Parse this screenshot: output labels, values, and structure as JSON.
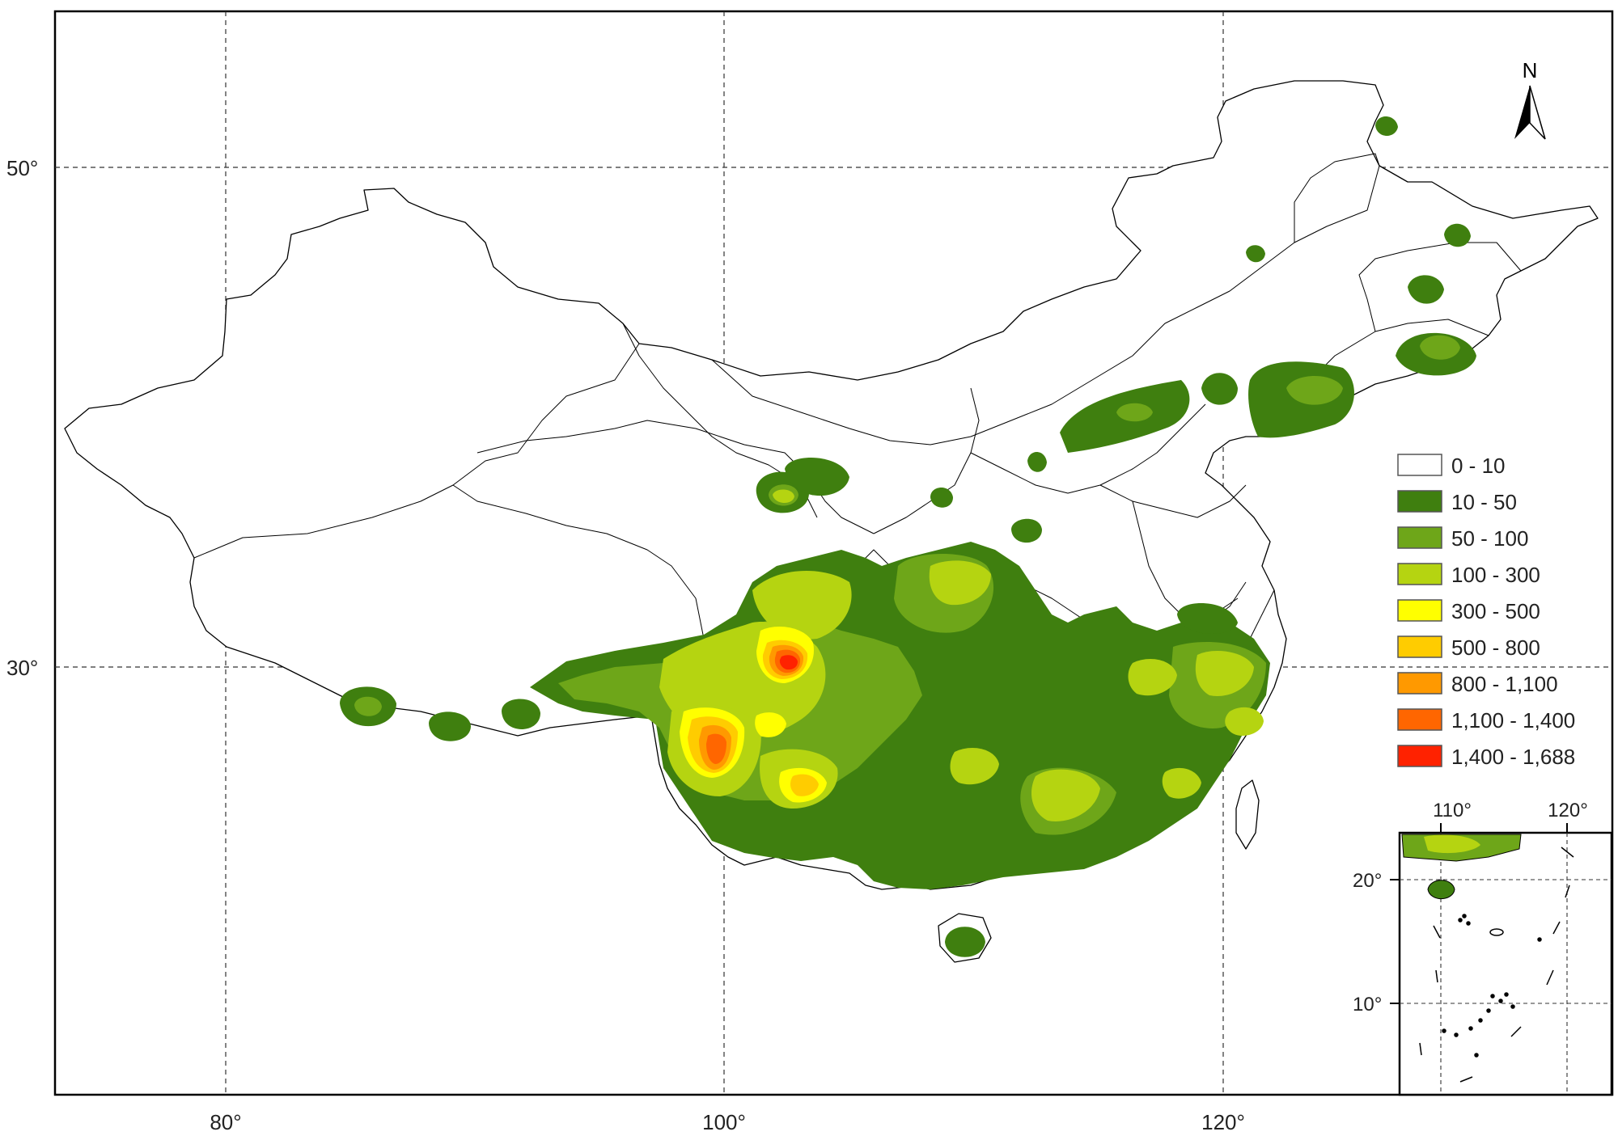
{
  "main_map": {
    "lat_ticks": [
      "50°",
      "30°"
    ],
    "lon_ticks": [
      "80°",
      "100°",
      "120°"
    ]
  },
  "north_arrow": {
    "label": "N"
  },
  "legend": {
    "items": [
      {
        "label": "0 - 10",
        "color": "#ffffff"
      },
      {
        "label": "10 - 50",
        "color": "#3f7f0f"
      },
      {
        "label": "50 - 100",
        "color": "#6ea619"
      },
      {
        "label": "100 - 300",
        "color": "#b5d411"
      },
      {
        "label": "300 - 500",
        "color": "#ffff00"
      },
      {
        "label": "500 - 800",
        "color": "#ffcc00"
      },
      {
        "label": "800 - 1,100",
        "color": "#ff9900"
      },
      {
        "label": "1,100 - 1,400",
        "color": "#ff6600"
      },
      {
        "label": "1,400 - 1,688",
        "color": "#ff2200"
      }
    ]
  },
  "inset_map": {
    "lon_ticks": [
      "110°",
      "120°"
    ],
    "lat_ticks": [
      "20°",
      "10°"
    ]
  }
}
